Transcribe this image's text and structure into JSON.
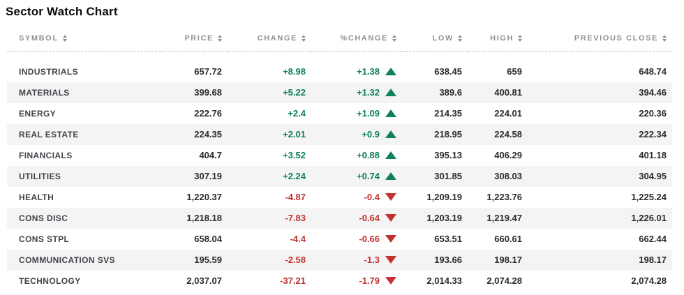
{
  "title": "Sector Watch Chart",
  "colors": {
    "positive_green": "#0f8155",
    "negative_red": "#c0332e",
    "header_gray": "#8d9196",
    "stripe_gray": "#f4f4f5"
  },
  "table": {
    "columns": [
      {
        "key": "symbol",
        "label": "SYMBOL",
        "align": "left"
      },
      {
        "key": "price",
        "label": "PRICE",
        "align": "right"
      },
      {
        "key": "change",
        "label": "CHANGE",
        "align": "right"
      },
      {
        "key": "pct_change",
        "label": "%CHANGE",
        "align": "right"
      },
      {
        "key": "low",
        "label": "LOW",
        "align": "right"
      },
      {
        "key": "high",
        "label": "HIGH",
        "align": "right"
      },
      {
        "key": "previous_close",
        "label": "PREVIOUS CLOSE",
        "align": "right"
      }
    ],
    "rows": [
      {
        "symbol": "INDUSTRIALS",
        "price": "657.72",
        "change": "+8.98",
        "pct_change": "+1.38",
        "direction": "up",
        "low": "638.45",
        "high": "659",
        "previous_close": "648.74"
      },
      {
        "symbol": "MATERIALS",
        "price": "399.68",
        "change": "+5.22",
        "pct_change": "+1.32",
        "direction": "up",
        "low": "389.6",
        "high": "400.81",
        "previous_close": "394.46"
      },
      {
        "symbol": "ENERGY",
        "price": "222.76",
        "change": "+2.4",
        "pct_change": "+1.09",
        "direction": "up",
        "low": "214.35",
        "high": "224.01",
        "previous_close": "220.36"
      },
      {
        "symbol": "REAL ESTATE",
        "price": "224.35",
        "change": "+2.01",
        "pct_change": "+0.9",
        "direction": "up",
        "low": "218.95",
        "high": "224.58",
        "previous_close": "222.34"
      },
      {
        "symbol": "FINANCIALS",
        "price": "404.7",
        "change": "+3.52",
        "pct_change": "+0.88",
        "direction": "up",
        "low": "395.13",
        "high": "406.29",
        "previous_close": "401.18"
      },
      {
        "symbol": "UTILITIES",
        "price": "307.19",
        "change": "+2.24",
        "pct_change": "+0.74",
        "direction": "up",
        "low": "301.85",
        "high": "308.03",
        "previous_close": "304.95"
      },
      {
        "symbol": "HEALTH",
        "price": "1,220.37",
        "change": "-4.87",
        "pct_change": "-0.4",
        "direction": "down",
        "low": "1,209.19",
        "high": "1,223.76",
        "previous_close": "1,225.24"
      },
      {
        "symbol": "CONS DISC",
        "price": "1,218.18",
        "change": "-7.83",
        "pct_change": "-0.64",
        "direction": "down",
        "low": "1,203.19",
        "high": "1,219.47",
        "previous_close": "1,226.01"
      },
      {
        "symbol": "CONS STPL",
        "price": "658.04",
        "change": "-4.4",
        "pct_change": "-0.66",
        "direction": "down",
        "low": "653.51",
        "high": "660.61",
        "previous_close": "662.44"
      },
      {
        "symbol": "COMMUNICATION SVS",
        "price": "195.59",
        "change": "-2.58",
        "pct_change": "-1.3",
        "direction": "down",
        "low": "193.66",
        "high": "198.17",
        "previous_close": "198.17"
      },
      {
        "symbol": "TECHNOLOGY",
        "price": "2,037.07",
        "change": "-37.21",
        "pct_change": "-1.79",
        "direction": "down",
        "low": "2,014.33",
        "high": "2,074.28",
        "previous_close": "2,074.28"
      }
    ]
  },
  "chart_data": {
    "type": "table",
    "title": "Sector Watch Chart",
    "columns": [
      "SYMBOL",
      "PRICE",
      "CHANGE",
      "%CHANGE",
      "LOW",
      "HIGH",
      "PREVIOUS CLOSE"
    ],
    "rows": [
      [
        "INDUSTRIALS",
        657.72,
        8.98,
        1.38,
        638.45,
        659,
        648.74
      ],
      [
        "MATERIALS",
        399.68,
        5.22,
        1.32,
        389.6,
        400.81,
        394.46
      ],
      [
        "ENERGY",
        222.76,
        2.4,
        1.09,
        214.35,
        224.01,
        220.36
      ],
      [
        "REAL ESTATE",
        224.35,
        2.01,
        0.9,
        218.95,
        224.58,
        222.34
      ],
      [
        "FINANCIALS",
        404.7,
        3.52,
        0.88,
        395.13,
        406.29,
        401.18
      ],
      [
        "UTILITIES",
        307.19,
        2.24,
        0.74,
        301.85,
        308.03,
        304.95
      ],
      [
        "HEALTH",
        1220.37,
        -4.87,
        -0.4,
        1209.19,
        1223.76,
        1225.24
      ],
      [
        "CONS DISC",
        1218.18,
        -7.83,
        -0.64,
        1203.19,
        1219.47,
        1226.01
      ],
      [
        "CONS STPL",
        658.04,
        -4.4,
        -0.66,
        653.51,
        660.61,
        662.44
      ],
      [
        "COMMUNICATION SVS",
        195.59,
        -2.58,
        -1.3,
        193.66,
        198.17,
        198.17
      ],
      [
        "TECHNOLOGY",
        2037.07,
        -37.21,
        -1.79,
        2014.33,
        2074.28,
        2074.28
      ]
    ]
  }
}
